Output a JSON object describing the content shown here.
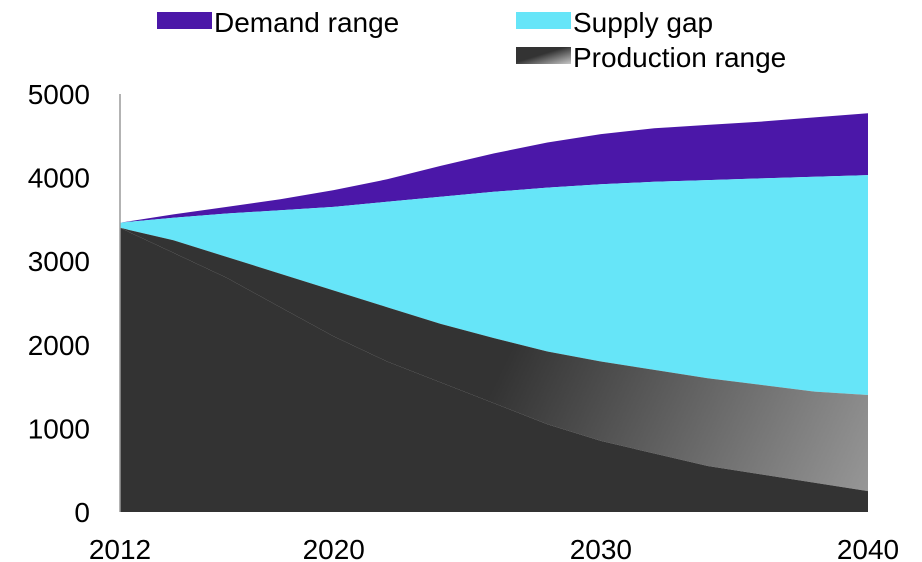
{
  "chart_data": {
    "type": "area",
    "title": "",
    "xlabel": "",
    "ylabel": "",
    "x": [
      2012,
      2014,
      2016,
      2018,
      2020,
      2022,
      2024,
      2026,
      2028,
      2030,
      2032,
      2034,
      2036,
      2038,
      2040
    ],
    "xticks": [
      "2012",
      "2020",
      "2030",
      "2040"
    ],
    "xtick_values": [
      2012,
      2020,
      2030,
      2040
    ],
    "yticks": [
      "0",
      "1000",
      "2000",
      "3000",
      "4000",
      "5000"
    ],
    "ytick_values": [
      0,
      1000,
      2000,
      3000,
      4000,
      5000
    ],
    "xlim": [
      2012,
      2040
    ],
    "ylim": [
      0,
      5000
    ],
    "grid": false,
    "legend_position": "top",
    "series": [
      {
        "name": "Production range",
        "low": [
          3400,
          3100,
          2800,
          2450,
          2100,
          1800,
          1550,
          1300,
          1050,
          850,
          700,
          550,
          450,
          350,
          250
        ],
        "high": [
          3400,
          3250,
          3050,
          2850,
          2650,
          2450,
          2250,
          2080,
          1920,
          1800,
          1700,
          1600,
          1520,
          1440,
          1400
        ],
        "color_dark": "#333333",
        "color_light": "#9a9a9a"
      },
      {
        "name": "Supply gap",
        "low": [
          3400,
          3250,
          3050,
          2850,
          2650,
          2450,
          2250,
          2080,
          1920,
          1800,
          1700,
          1600,
          1520,
          1440,
          1400
        ],
        "high": [
          3460,
          3520,
          3570,
          3610,
          3650,
          3710,
          3770,
          3830,
          3880,
          3920,
          3950,
          3970,
          3990,
          4010,
          4030
        ],
        "color": "#66e5f8"
      },
      {
        "name": "Demand range",
        "low": [
          3460,
          3520,
          3570,
          3610,
          3650,
          3710,
          3770,
          3830,
          3880,
          3920,
          3950,
          3970,
          3990,
          4010,
          4030
        ],
        "high": [
          3460,
          3560,
          3650,
          3740,
          3850,
          3980,
          4140,
          4290,
          4420,
          4520,
          4590,
          4630,
          4670,
          4720,
          4770
        ],
        "color": "#4b17a8"
      }
    ],
    "legend": [
      {
        "label": "Demand range",
        "color": "#4b17a8"
      },
      {
        "label": "Supply gap",
        "color": "#66e5f8"
      },
      {
        "label": "Production range",
        "color": "#333333"
      }
    ]
  }
}
